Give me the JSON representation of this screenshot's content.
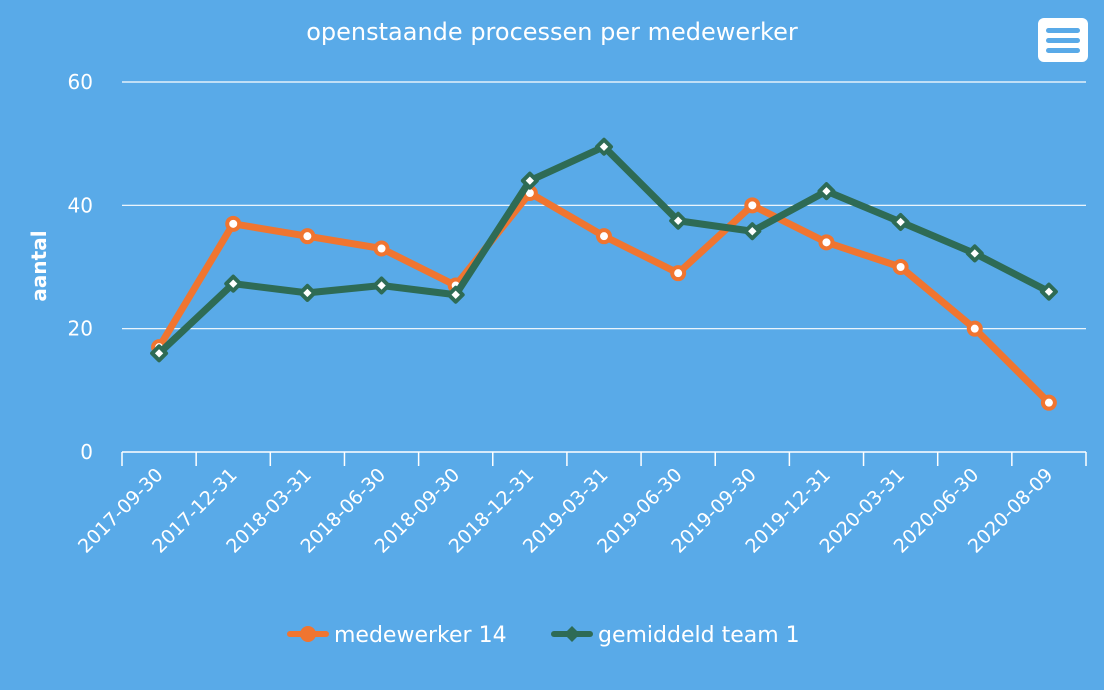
{
  "menu": {
    "icon": "hamburger-menu-icon"
  },
  "colors": {
    "background": "#59aae8",
    "grid": "#ffffff",
    "text": "#ffffff"
  },
  "chart_data": {
    "type": "line",
    "title": "openstaande processen per medewerker",
    "xlabel": "",
    "ylabel": "aantal",
    "ylim": [
      0,
      60
    ],
    "yticks": [
      0,
      20,
      40,
      60
    ],
    "grid": true,
    "legend_position": "bottom-center",
    "categories": [
      "2017-09-30",
      "2017-12-31",
      "2018-03-31",
      "2018-06-30",
      "2018-09-30",
      "2018-12-31",
      "2019-03-31",
      "2019-06-30",
      "2019-09-30",
      "2019-12-31",
      "2020-03-31",
      "2020-06-30",
      "2020-08-09"
    ],
    "series": [
      {
        "name": "medewerker 14",
        "color": "#f07530",
        "marker": "circle",
        "values": [
          17,
          37,
          35,
          33,
          27,
          42,
          35,
          29,
          40,
          34,
          30,
          20,
          8
        ]
      },
      {
        "name": "gemiddeld team 1",
        "color": "#2e6b55",
        "marker": "diamond",
        "values": [
          16,
          27.3,
          25.8,
          27,
          25.5,
          44,
          49.5,
          37.5,
          35.8,
          42.3,
          37.3,
          32.2,
          26
        ]
      }
    ]
  }
}
